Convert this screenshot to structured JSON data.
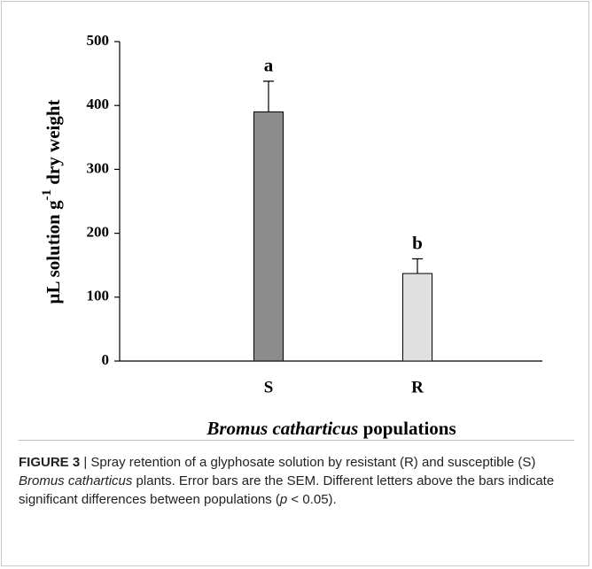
{
  "chart_data": {
    "type": "bar",
    "categories": [
      "S",
      "R"
    ],
    "values": [
      390,
      137
    ],
    "errors": [
      48,
      23
    ],
    "annotations": [
      "a",
      "b"
    ],
    "colors": [
      "#8c8c8c",
      "#e0e0e0"
    ],
    "ylim": [
      0,
      500
    ],
    "yticks": [
      0,
      100,
      200,
      300,
      400,
      500
    ],
    "grid": false,
    "ylabel": [
      "µL solution g",
      "-1",
      " dry weight"
    ],
    "xlabel": [
      "Bromus catharticus",
      " populations"
    ]
  },
  "caption": [
    "FIGURE 3",
    " | Spray retention of a glyphosate solution by resistant (R) and susceptible (S) ",
    "Bromus catharticus",
    " plants. Error bars are the SEM. Different letters above the bars indicate significant differences between populations (",
    "p",
    " < 0.05)."
  ]
}
